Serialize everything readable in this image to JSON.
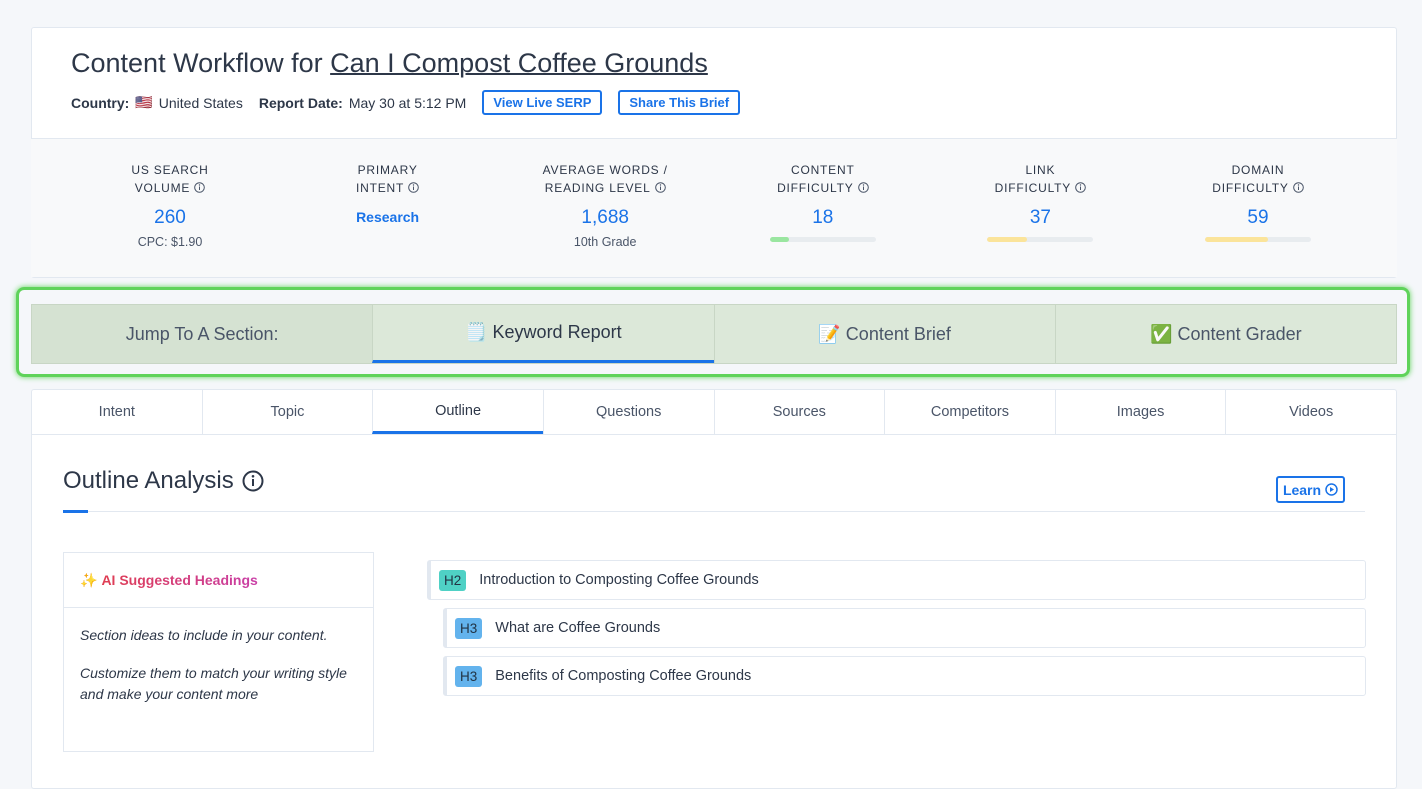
{
  "header": {
    "title_prefix": "Content Workflow for",
    "title_keyword": "Can I Compost Coffee Grounds",
    "country_label": "Country:",
    "country_flag": "🇺🇸",
    "country": "United States",
    "report_date_label": "Report Date:",
    "report_date": "May 30 at 5:12 PM",
    "buttons": [
      "View Live SERP",
      "Share This Brief"
    ]
  },
  "metrics": [
    {
      "label_lines": [
        "US SEARCH",
        "VOLUME"
      ],
      "value": "260",
      "sub": "CPC: $1.90"
    },
    {
      "label_lines": [
        "PRIMARY",
        "INTENT"
      ],
      "value": "Research"
    },
    {
      "label_lines": [
        "AVERAGE WORDS /",
        "READING LEVEL"
      ],
      "value": "1,688",
      "sub": "10th Grade"
    },
    {
      "label_lines": [
        "CONTENT",
        "DIFFICULTY"
      ],
      "value": 18,
      "bar_color": "#9ae6a0"
    },
    {
      "label_lines": [
        "LINK",
        "DIFFICULTY"
      ],
      "value": 37,
      "bar_color": "#fbe49a"
    },
    {
      "label_lines": [
        "DOMAIN",
        "DIFFICULTY"
      ],
      "value": 59,
      "bar_color": "#fbe49a"
    }
  ],
  "jump": {
    "label": "Jump To A Section:",
    "sections": [
      "🗒️ Keyword Report",
      "📝 Content Brief",
      "✅ Content Grader"
    ],
    "active": 0
  },
  "tabs": {
    "items": [
      "Intent",
      "Topic",
      "Outline",
      "Questions",
      "Sources",
      "Competitors",
      "Images",
      "Videos"
    ],
    "active": 2
  },
  "outline": {
    "title": "Outline Analysis",
    "learn": "Learn",
    "sidebar": {
      "title": "AI Suggested Headings",
      "paragraphs": [
        "Section ideas to include in your content.",
        "Customize them to match your writing style and make your content more"
      ]
    },
    "headings": [
      {
        "level": "H2",
        "text": "Introduction to Composting Coffee Grounds"
      },
      {
        "level": "H3",
        "text": "What are Coffee Grounds"
      },
      {
        "level": "H3",
        "text": "Benefits of Composting Coffee Grounds"
      }
    ]
  }
}
